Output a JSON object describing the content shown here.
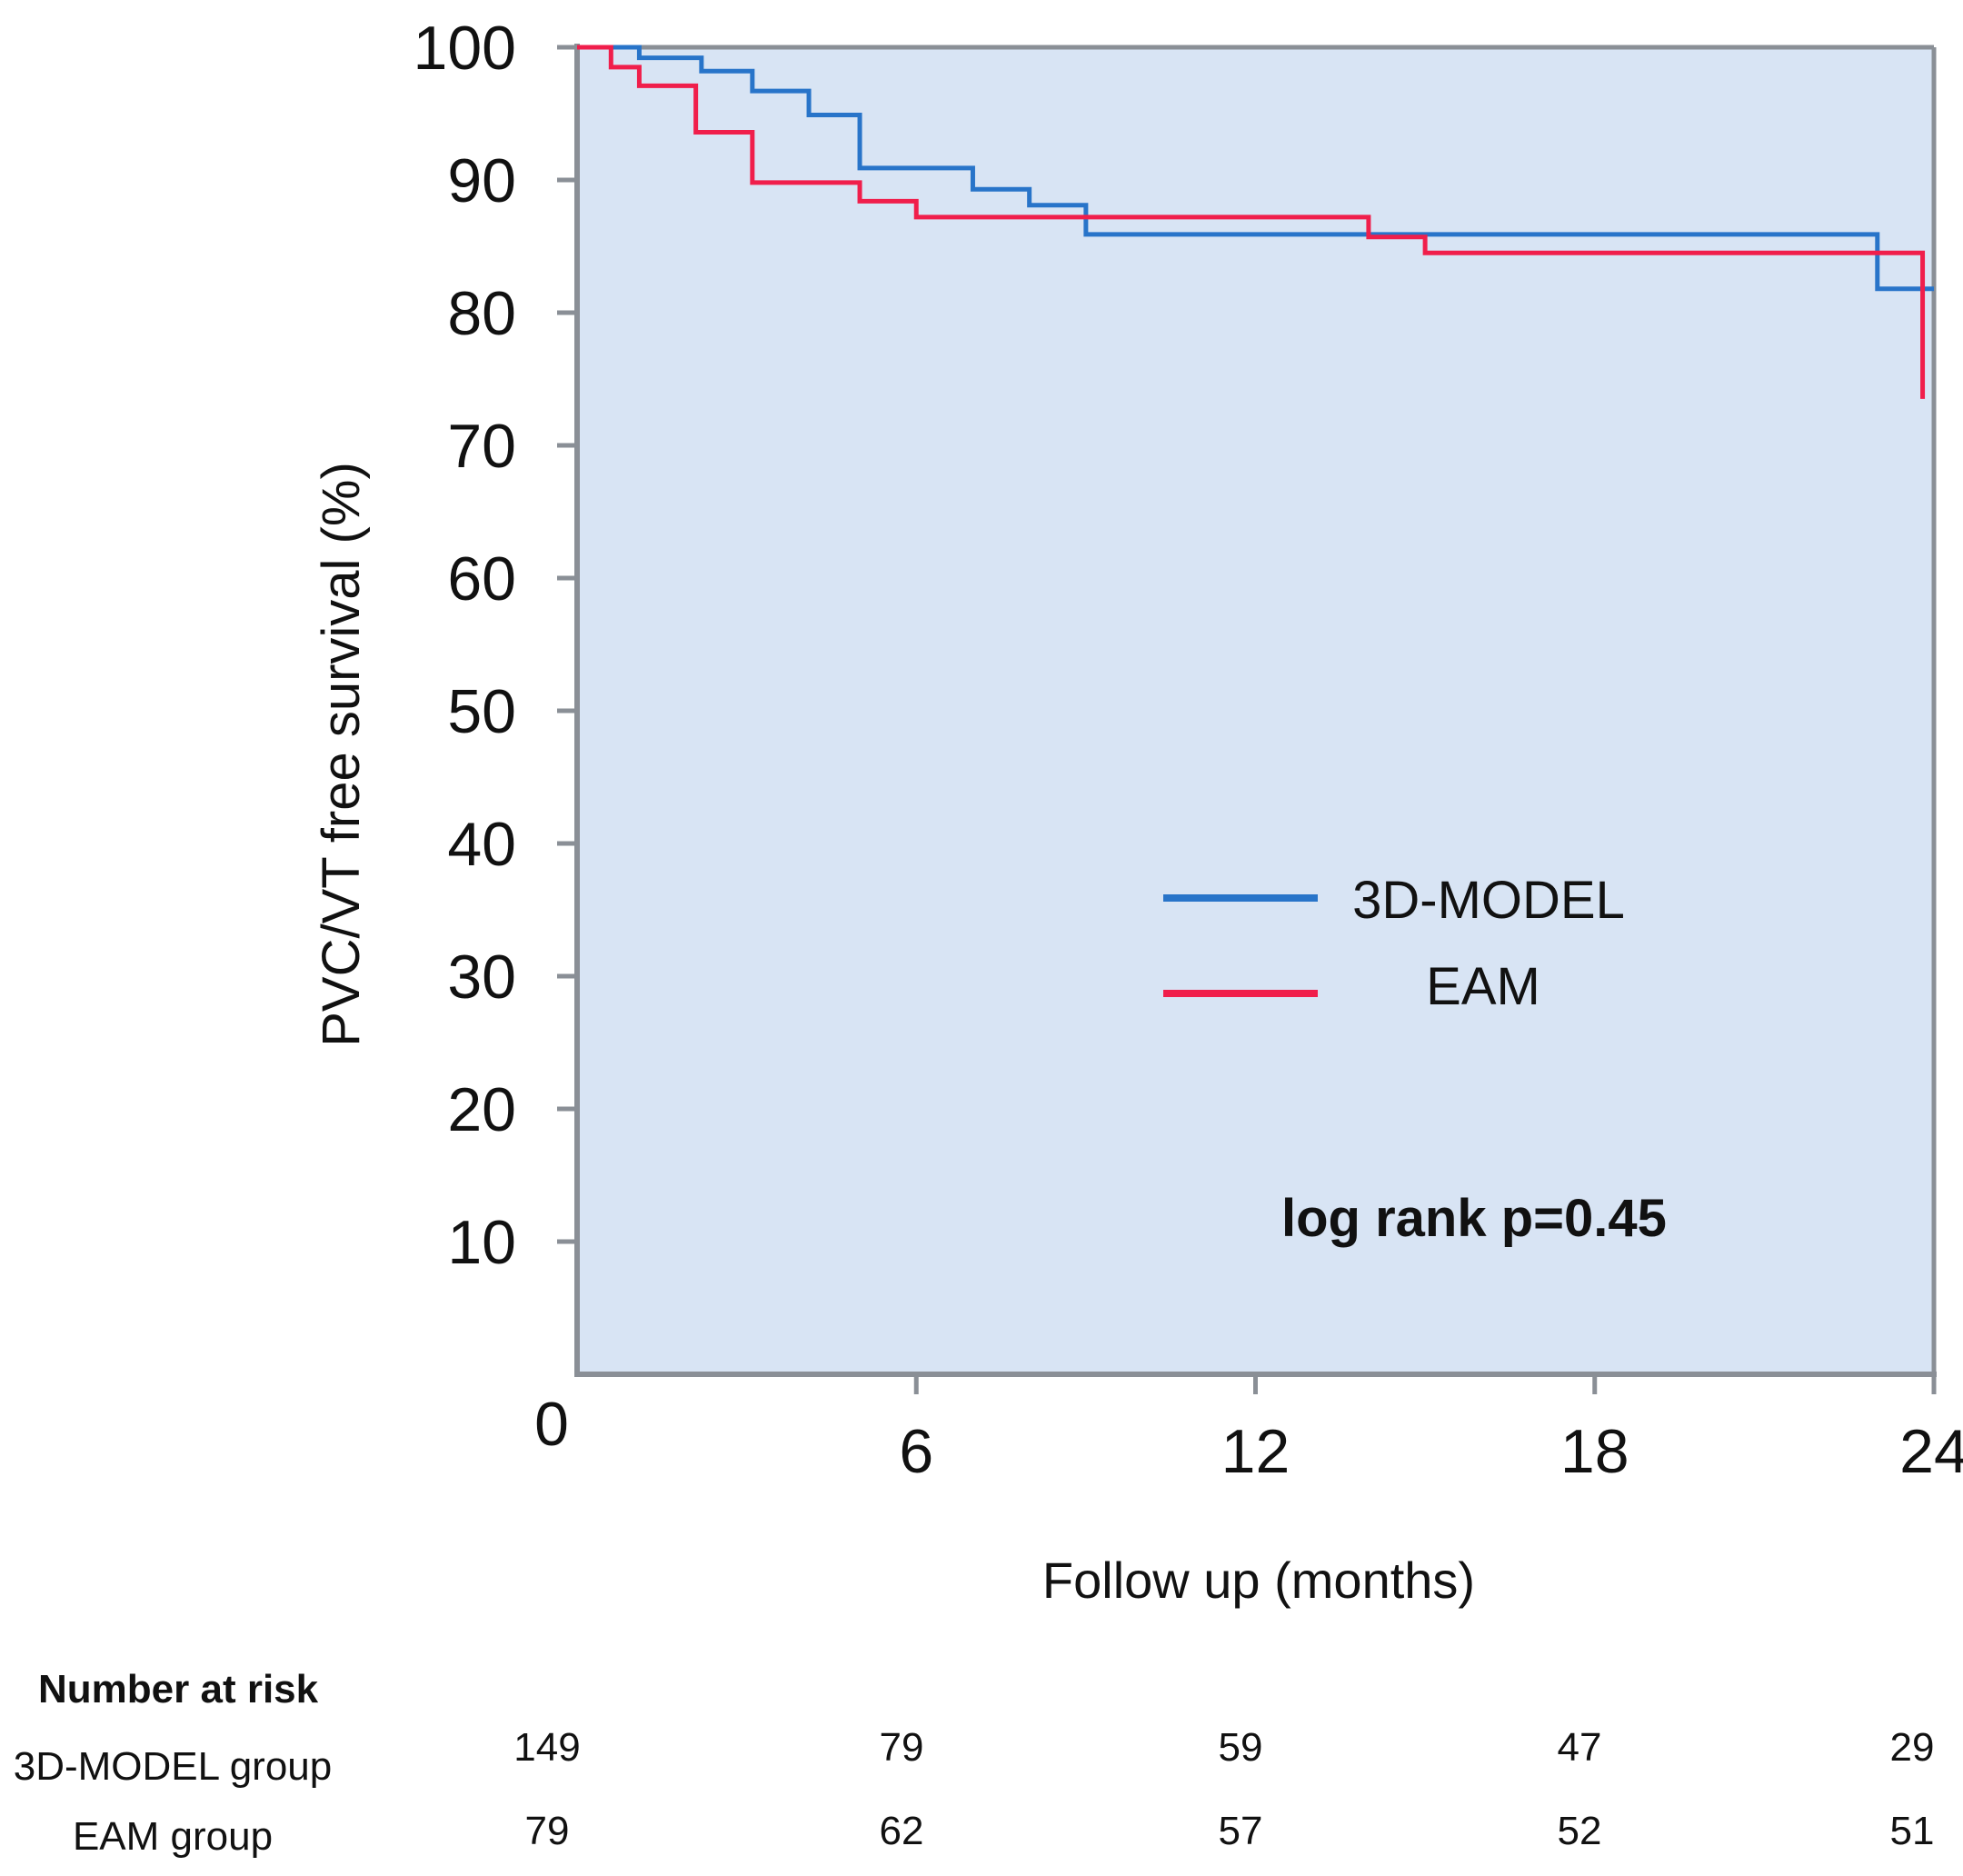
{
  "chart_data": {
    "type": "line",
    "subtype": "kaplan-meier step",
    "ylabel": "PVC/VT free survival (%)",
    "xlabel": "Follow up (months)",
    "ylim": [
      0,
      100
    ],
    "xlim": [
      0,
      24
    ],
    "yticks": [
      "10",
      "20",
      "30",
      "40",
      "50",
      "60",
      "70",
      "80",
      "90",
      "100"
    ],
    "xticks": [
      "0",
      "6",
      "12",
      "18",
      "24"
    ],
    "annotation": "log rank p=0.45",
    "colors": {
      "plot_bg": "#d8e4f4",
      "axis": "#8a8f96",
      "model": "#2874c9",
      "eam": "#f01e4b"
    },
    "series": [
      {
        "name": "3D-MODEL",
        "color": "#2874c9",
        "steps": [
          [
            0,
            100
          ],
          [
            1.1,
            99.2
          ],
          [
            2.2,
            98.2
          ],
          [
            3.1,
            96.7
          ],
          [
            4.1,
            94.9
          ],
          [
            5.0,
            90.9
          ],
          [
            7.0,
            89.3
          ],
          [
            8.0,
            88.1
          ],
          [
            9.0,
            85.9
          ],
          [
            23.0,
            81.8
          ],
          [
            24.0,
            81.8
          ]
        ]
      },
      {
        "name": "EAM",
        "color": "#f01e4b",
        "steps": [
          [
            0,
            100
          ],
          [
            0.6,
            98.5
          ],
          [
            1.1,
            97.1
          ],
          [
            2.1,
            93.6
          ],
          [
            3.1,
            89.8
          ],
          [
            5.0,
            88.4
          ],
          [
            6.0,
            87.2
          ],
          [
            14.0,
            85.7
          ],
          [
            15.0,
            84.5
          ],
          [
            23.8,
            73.5
          ]
        ]
      }
    ],
    "risk_table": {
      "title": "Number at risk",
      "groups": [
        {
          "label": "3D-MODEL group",
          "values": [
            "149",
            "79",
            "59",
            "47",
            "29"
          ]
        },
        {
          "label": "EAM group",
          "values": [
            "79",
            "62",
            "57",
            "52",
            "51"
          ]
        }
      ]
    }
  }
}
